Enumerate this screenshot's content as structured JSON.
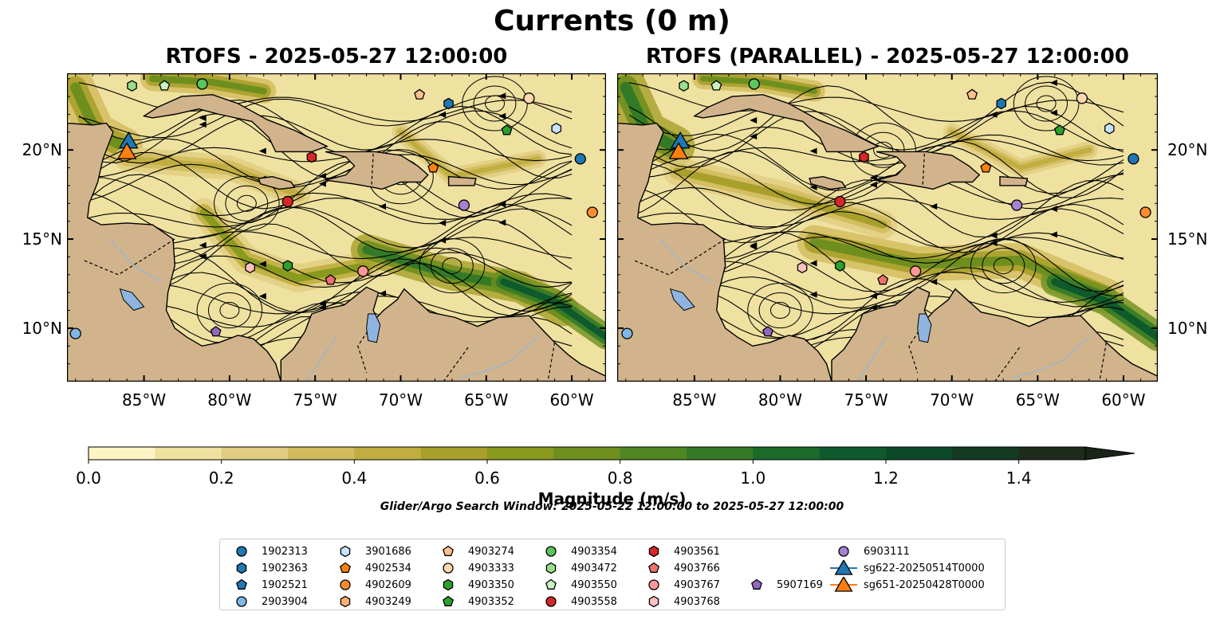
{
  "title": "Currents (0 m)",
  "panels": [
    {
      "title": "RTOFS - 2025-05-27 12:00:00"
    },
    {
      "title": "RTOFS (PARALLEL) - 2025-05-27 12:00:00"
    }
  ],
  "axes": {
    "lon_ticks": [
      "85°W",
      "80°W",
      "75°W",
      "70°W",
      "65°W",
      "60°W"
    ],
    "lat_ticks": [
      "20°N",
      "15°N",
      "10°N"
    ],
    "lon_range": [
      -89.5,
      -58.0
    ],
    "lat_range": [
      7.0,
      24.3
    ]
  },
  "colorbar": {
    "label": "Magnitude (m/s)",
    "ticks": [
      "0.0",
      "0.2",
      "0.4",
      "0.6",
      "0.8",
      "1.0",
      "1.2",
      "1.4"
    ],
    "range": [
      0,
      1.5
    ],
    "extend": "max",
    "colors": [
      "#fbf5c4",
      "#efe1a0",
      "#e0cd80",
      "#d2bb5e",
      "#c0ae40",
      "#a8a02b",
      "#8a9a1e",
      "#6e8f1e",
      "#4f8622",
      "#337a26",
      "#1c6a2a",
      "#0e5a2c",
      "#0b4a28",
      "#143a22",
      "#1d2c1c",
      "#1a2418"
    ]
  },
  "search_window": "Glider/Argo Search Window: 2025-05-22 12:00:00 to 2025-05-27 12:00:00",
  "map_colors": {
    "land": "#d2b48c",
    "ocean_low": "#f3e39a",
    "lake": "#90b4e0",
    "river": "#9fb5c8"
  },
  "legend": [
    {
      "label": "1902313",
      "color": "#1f77b4",
      "marker": "circle"
    },
    {
      "label": "1902363",
      "color": "#1f77b4",
      "marker": "hexagon"
    },
    {
      "label": "1902521",
      "color": "#1f77b4",
      "marker": "pentagon"
    },
    {
      "label": "2903904",
      "color": "#7fb8e6",
      "marker": "circle"
    },
    {
      "label": "3901686",
      "color": "#c6e4ff",
      "marker": "hexagon"
    },
    {
      "label": "4902534",
      "color": "#ff7f0e",
      "marker": "pentagon"
    },
    {
      "label": "4902609",
      "color": "#ff8c30",
      "marker": "circle"
    },
    {
      "label": "4903249",
      "color": "#ffb070",
      "marker": "hexagon"
    },
    {
      "label": "4903274",
      "color": "#ffc090",
      "marker": "pentagon"
    },
    {
      "label": "4903333",
      "color": "#ffd8b0",
      "marker": "circle"
    },
    {
      "label": "4903350",
      "color": "#2ca02c",
      "marker": "hexagon"
    },
    {
      "label": "4903352",
      "color": "#2ca02c",
      "marker": "pentagon"
    },
    {
      "label": "4903354",
      "color": "#5cc45c",
      "marker": "circle"
    },
    {
      "label": "4903472",
      "color": "#98df8a",
      "marker": "hexagon"
    },
    {
      "label": "4903550",
      "color": "#c8f2c0",
      "marker": "pentagon"
    },
    {
      "label": "4903558",
      "color": "#d62728",
      "marker": "circle"
    },
    {
      "label": "4903561",
      "color": "#d62728",
      "marker": "hexagon"
    },
    {
      "label": "4903766",
      "color": "#f07070",
      "marker": "pentagon"
    },
    {
      "label": "4903767",
      "color": "#ff9896",
      "marker": "circle"
    },
    {
      "label": "4903768",
      "color": "#ffc0c0",
      "marker": "hexagon"
    },
    {
      "label": "5907169",
      "color": "#9467bd",
      "marker": "pentagon"
    },
    {
      "label": "6903111",
      "color": "#a880d0",
      "marker": "circle"
    },
    {
      "label": "sg622-20250514T0000",
      "color": "#1f77b4",
      "marker": "triangle"
    },
    {
      "label": "sg651-20250428T0000",
      "color": "#ff7f0e",
      "marker": "triangle"
    }
  ],
  "floats": [
    {
      "id": "1902313",
      "lon": -59.5,
      "lat": 19.5
    },
    {
      "id": "1902363",
      "lon": -67.2,
      "lat": 22.6
    },
    {
      "id": "2903904",
      "lon": -89.0,
      "lat": 9.7
    },
    {
      "id": "3901686",
      "lon": -60.9,
      "lat": 21.2
    },
    {
      "id": "4902534",
      "lon": -68.1,
      "lat": 19.0
    },
    {
      "id": "4902609",
      "lon": -58.8,
      "lat": 16.5
    },
    {
      "id": "4903274",
      "lon": -68.9,
      "lat": 23.1
    },
    {
      "id": "4903333",
      "lon": -62.5,
      "lat": 22.9
    },
    {
      "id": "4903350",
      "lon": -76.6,
      "lat": 13.5
    },
    {
      "id": "4903352",
      "lon": -63.8,
      "lat": 21.1
    },
    {
      "id": "4903354",
      "lon": -81.6,
      "lat": 23.7
    },
    {
      "id": "4903472",
      "lon": -85.7,
      "lat": 23.6
    },
    {
      "id": "4903550",
      "lon": -83.8,
      "lat": 23.6
    },
    {
      "id": "4903558",
      "lon": -76.6,
      "lat": 17.1
    },
    {
      "id": "4903561",
      "lon": -75.2,
      "lat": 19.6
    },
    {
      "id": "4903766",
      "lon": -74.1,
      "lat": 12.7
    },
    {
      "id": "4903767",
      "lon": -72.2,
      "lat": 13.2
    },
    {
      "id": "4903768",
      "lon": -78.8,
      "lat": 13.4
    },
    {
      "id": "5907169",
      "lon": -80.8,
      "lat": 9.8
    },
    {
      "id": "6903111",
      "lon": -66.3,
      "lat": 16.9
    },
    {
      "id": "sg622-20250514T0000",
      "lon": -85.9,
      "lat": 20.4
    },
    {
      "id": "sg651-20250428T0000",
      "lon": -86.0,
      "lat": 19.8
    }
  ]
}
